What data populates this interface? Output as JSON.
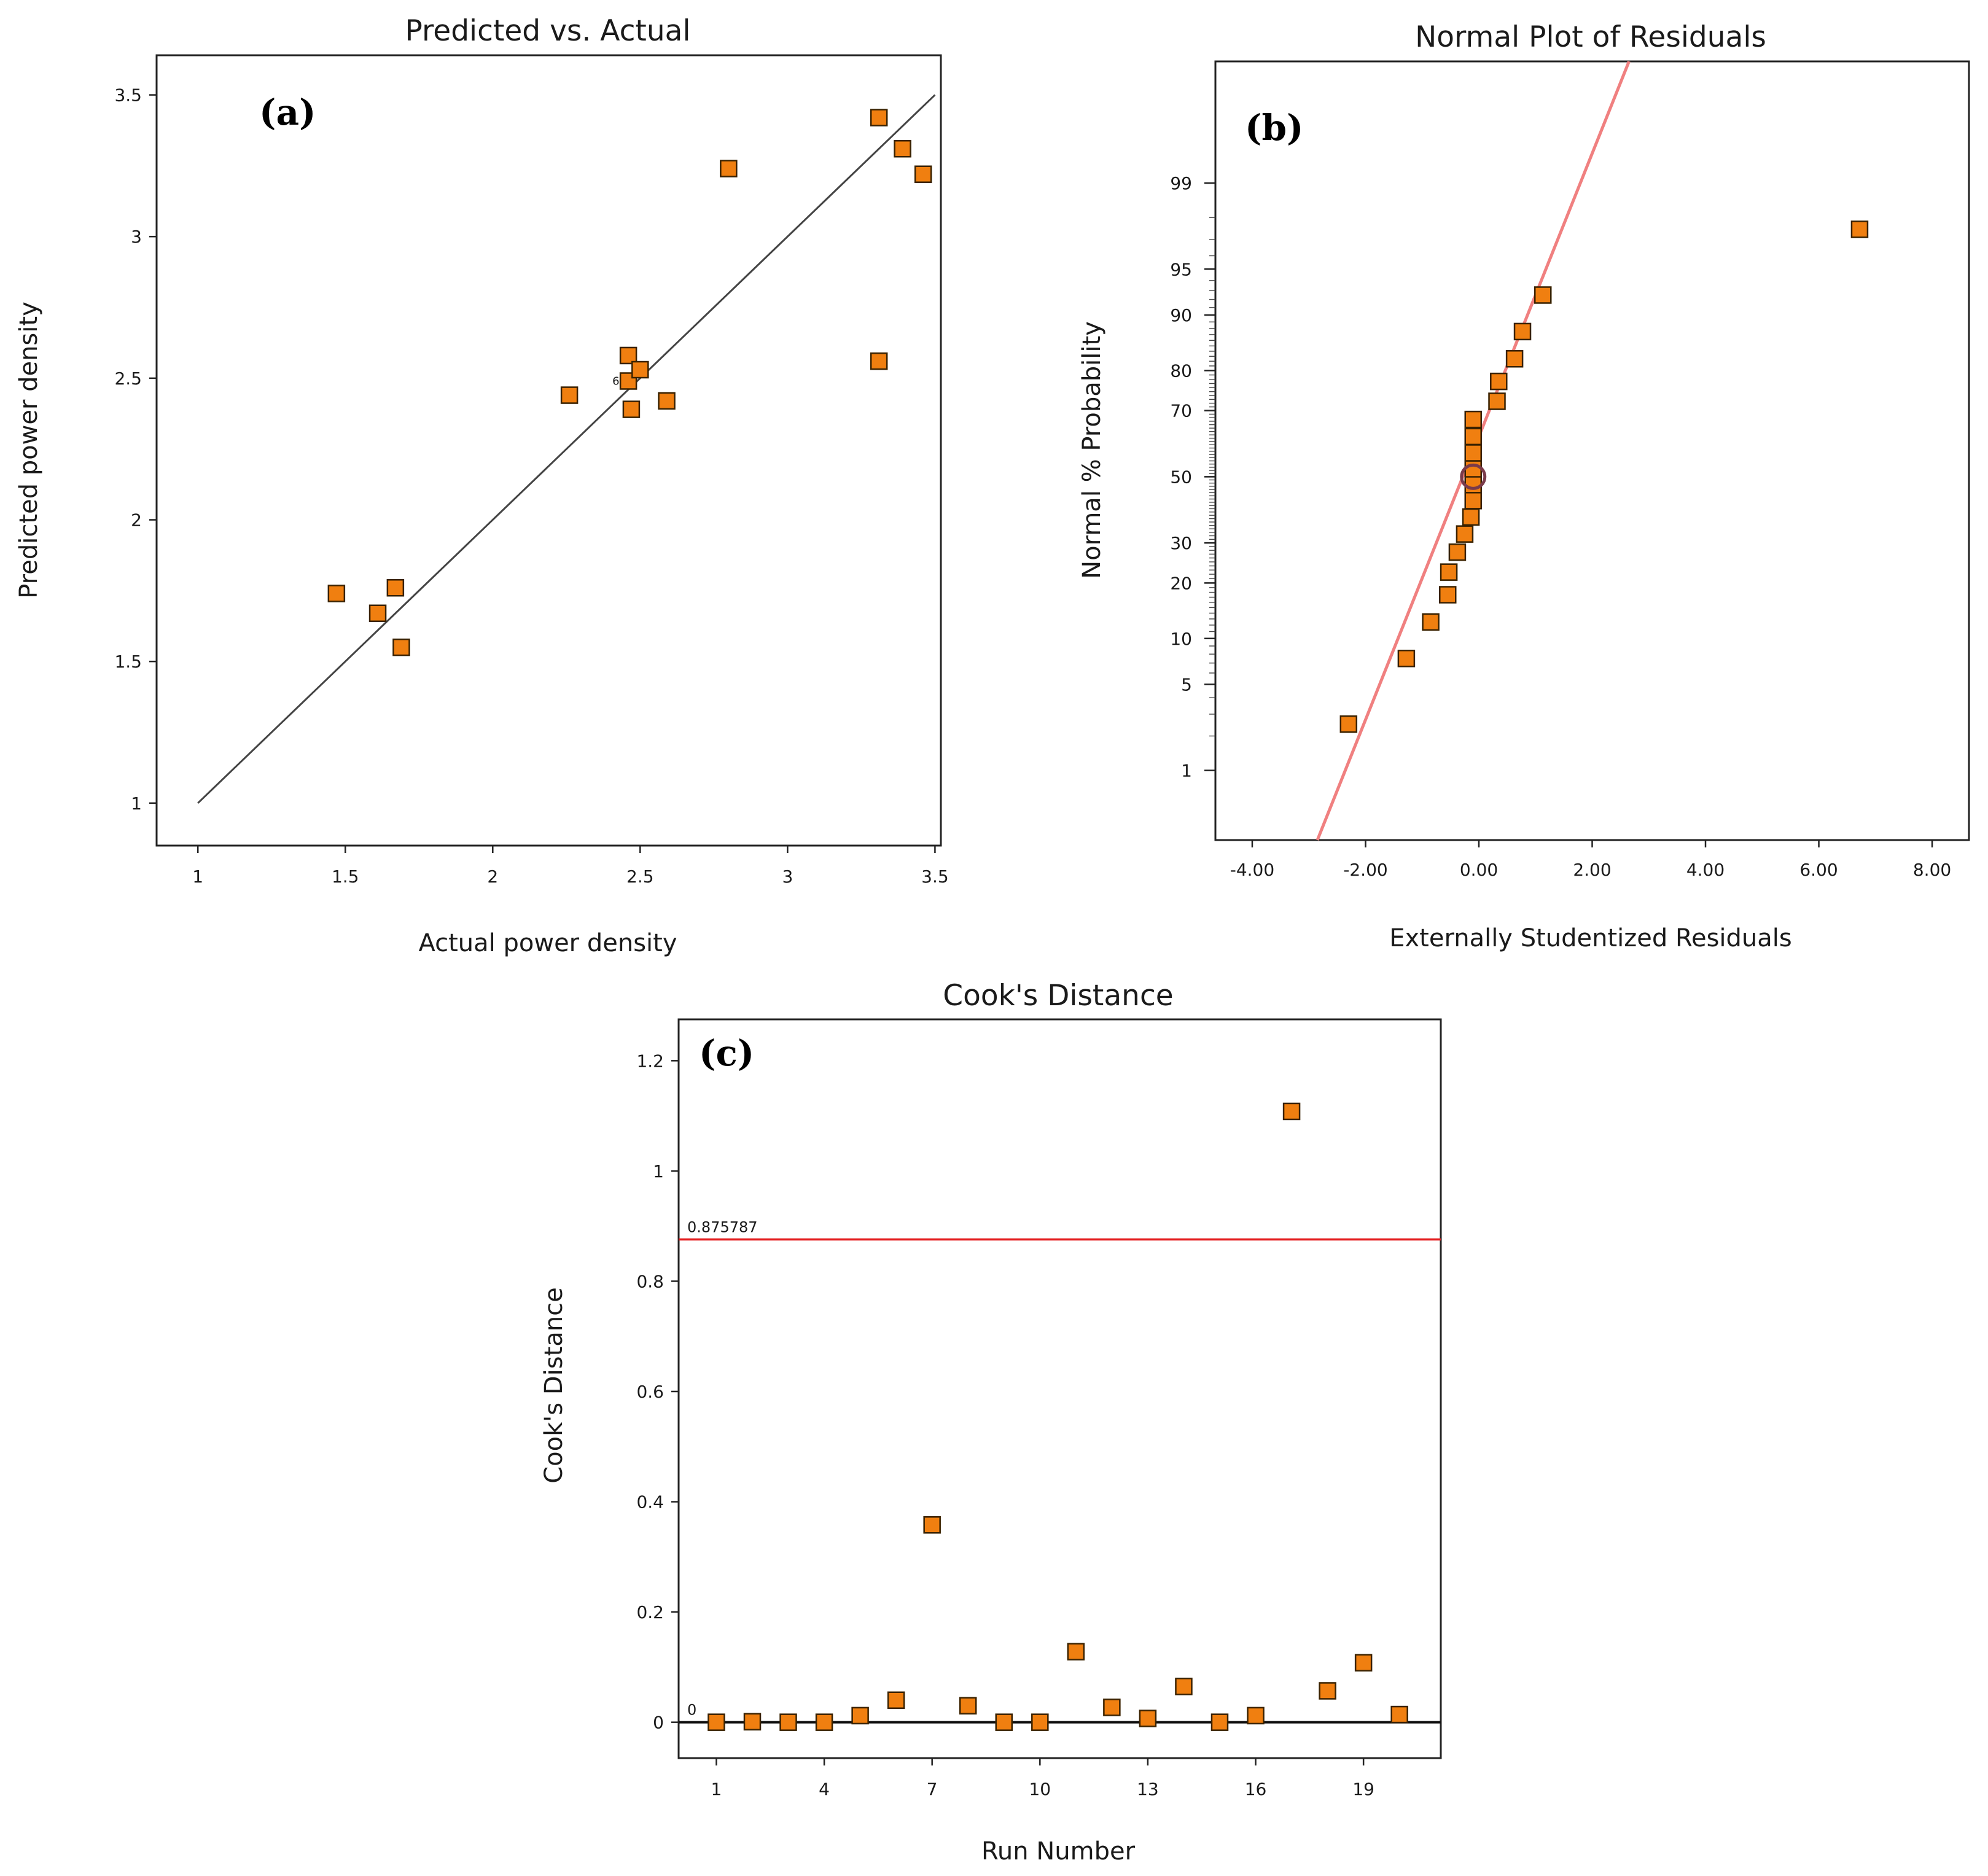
{
  "chart_data": [
    {
      "type": "scatter",
      "panel_label": "(a)",
      "title": "Predicted vs. Actual",
      "xlabel": "Actual power density",
      "ylabel": "Predicted power density",
      "xlim": [
        0.86,
        3.52
      ],
      "ylim": [
        0.85,
        3.64
      ],
      "x_ticks": [
        "1",
        "1.5",
        "2",
        "2.5",
        "3",
        "3.5"
      ],
      "y_ticks": [
        "1",
        "1.5",
        "2",
        "2.5",
        "3",
        "3.5"
      ],
      "reference_line": {
        "from": [
          1,
          1
        ],
        "to": [
          3.5,
          3.5
        ],
        "color": "#444444"
      },
      "annotation": "6",
      "marker_color": "#f07f10",
      "points": [
        {
          "x": 1.47,
          "y": 1.74
        },
        {
          "x": 1.61,
          "y": 1.67
        },
        {
          "x": 1.67,
          "y": 1.76
        },
        {
          "x": 1.69,
          "y": 1.55
        },
        {
          "x": 2.26,
          "y": 2.44
        },
        {
          "x": 2.46,
          "y": 2.49
        },
        {
          "x": 2.46,
          "y": 2.58
        },
        {
          "x": 2.47,
          "y": 2.39
        },
        {
          "x": 2.5,
          "y": 2.53
        },
        {
          "x": 2.59,
          "y": 2.42
        },
        {
          "x": 2.8,
          "y": 3.24
        },
        {
          "x": 3.31,
          "y": 3.42
        },
        {
          "x": 3.31,
          "y": 2.56
        },
        {
          "x": 3.39,
          "y": 3.31
        },
        {
          "x": 3.46,
          "y": 3.22
        }
      ]
    },
    {
      "type": "scatter",
      "panel_label": "(b)",
      "title": "Normal Plot of Residuals",
      "xlabel": "Externally Studentized Residuals",
      "ylabel": "Normal % Probability",
      "xlim": [
        -4.65,
        8.65
      ],
      "y_scale": "probit",
      "ylim_probability": [
        0.2,
        99.95
      ],
      "x_ticks": [
        "-4.00",
        "-2.00",
        "0.00",
        "2.00",
        "4.00",
        "6.00",
        "8.00"
      ],
      "y_ticks": [
        "1",
        "5",
        "10",
        "20",
        "30",
        "50",
        "70",
        "80",
        "90",
        "95",
        "99"
      ],
      "reference_line": {
        "from": [
          -2.85,
          0.2
        ],
        "to": [
          2.65,
          99.95
        ],
        "color": "#f08080"
      },
      "highlight_point": {
        "x": -0.1,
        "y": 50
      },
      "marker_color": "#f07f10",
      "points": [
        {
          "x": -2.3,
          "y": 2.5
        },
        {
          "x": -1.28,
          "y": 7.5
        },
        {
          "x": -0.85,
          "y": 12.5
        },
        {
          "x": -0.55,
          "y": 17.5
        },
        {
          "x": -0.53,
          "y": 22.5
        },
        {
          "x": -0.38,
          "y": 27.5
        },
        {
          "x": -0.25,
          "y": 32.5
        },
        {
          "x": -0.14,
          "y": 37.5
        },
        {
          "x": -0.1,
          "y": 42.5
        },
        {
          "x": -0.1,
          "y": 47.5
        },
        {
          "x": -0.1,
          "y": 52.5
        },
        {
          "x": -0.1,
          "y": 57.5
        },
        {
          "x": -0.1,
          "y": 62.5
        },
        {
          "x": -0.1,
          "y": 67.5
        },
        {
          "x": 0.32,
          "y": 72.5
        },
        {
          "x": 0.35,
          "y": 77.5
        },
        {
          "x": 0.63,
          "y": 82.5
        },
        {
          "x": 0.77,
          "y": 87.5
        },
        {
          "x": 1.13,
          "y": 92.5
        },
        {
          "x": 6.72,
          "y": 97.5
        }
      ]
    },
    {
      "type": "scatter",
      "panel_label": "(c)",
      "title": "Cook's Distance",
      "xlabel": "Run Number",
      "ylabel": "Cook's Distance",
      "xlim": [
        -0.05,
        21.15
      ],
      "ylim": [
        -0.065,
        1.275
      ],
      "x_ticks": [
        "1",
        "4",
        "7",
        "10",
        "13",
        "16",
        "19"
      ],
      "y_ticks": [
        "0",
        "0.2",
        "0.4",
        "0.6",
        "0.8",
        "1",
        "1.2"
      ],
      "threshold": {
        "value": 0.875787,
        "label": "0.875787",
        "color": "#e31a1c"
      },
      "zero_line": {
        "value": 0,
        "label": "0"
      },
      "marker_color": "#f07f10",
      "points": [
        {
          "x": 1,
          "y": 0.0
        },
        {
          "x": 2,
          "y": 0.001
        },
        {
          "x": 3,
          "y": 0.0
        },
        {
          "x": 4,
          "y": 0.0
        },
        {
          "x": 5,
          "y": 0.012
        },
        {
          "x": 6,
          "y": 0.04
        },
        {
          "x": 7,
          "y": 0.358
        },
        {
          "x": 8,
          "y": 0.03
        },
        {
          "x": 9,
          "y": 0.0
        },
        {
          "x": 10,
          "y": 0.0
        },
        {
          "x": 11,
          "y": 0.128
        },
        {
          "x": 12,
          "y": 0.027
        },
        {
          "x": 13,
          "y": 0.007
        },
        {
          "x": 14,
          "y": 0.065
        },
        {
          "x": 15,
          "y": 0.0
        },
        {
          "x": 16,
          "y": 0.012
        },
        {
          "x": 17,
          "y": 1.108
        },
        {
          "x": 18,
          "y": 0.057
        },
        {
          "x": 19,
          "y": 0.108
        },
        {
          "x": 20,
          "y": 0.014
        }
      ]
    }
  ]
}
